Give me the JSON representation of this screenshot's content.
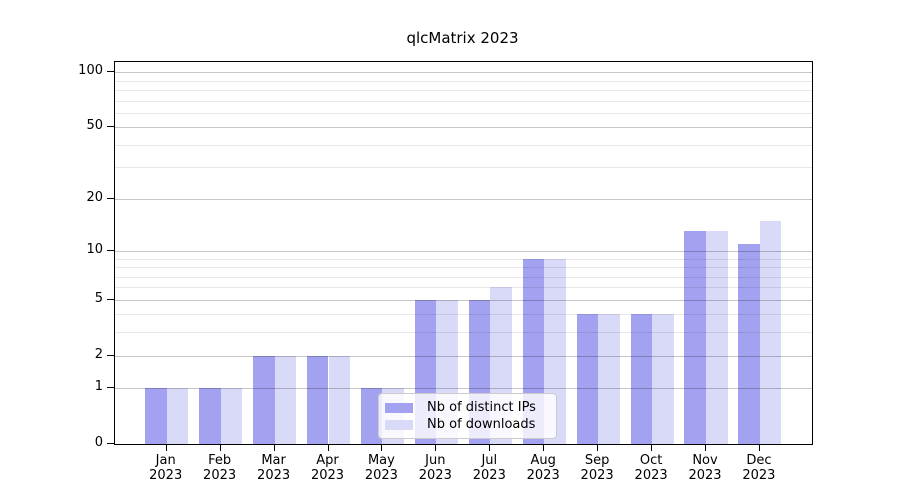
{
  "title": "qlcMatrix 2023",
  "legend": {
    "items": [
      {
        "label": "Nb of distinct IPs",
        "color": "#a2a2f0"
      },
      {
        "label": "Nb of downloads",
        "color": "#d9d9f8"
      }
    ]
  },
  "chart_data": {
    "type": "bar",
    "title": "qlcMatrix 2023",
    "categories": [
      "Jan 2023",
      "Feb 2023",
      "Mar 2023",
      "Apr 2023",
      "May 2023",
      "Jun 2023",
      "Jul 2023",
      "Aug 2023",
      "Sep 2023",
      "Oct 2023",
      "Nov 2023",
      "Dec 2023"
    ],
    "series": [
      {
        "name": "Nb of distinct IPs",
        "color": "#a2a2f0",
        "values": [
          1,
          1,
          2,
          2,
          1,
          5,
          5,
          9,
          4,
          4,
          13,
          11
        ]
      },
      {
        "name": "Nb of downloads",
        "color": "#d9d9f8",
        "values": [
          1,
          1,
          2,
          2,
          1,
          5,
          6,
          9,
          4,
          4,
          13,
          15
        ]
      }
    ],
    "xlabel": "",
    "ylabel": "",
    "y_scale": "log1p",
    "ylim": [
      0,
      115
    ],
    "y_major_ticks": [
      0,
      1,
      2,
      5,
      10,
      20,
      50,
      100
    ],
    "y_minor_gridlines": [
      3,
      4,
      6,
      7,
      8,
      9,
      30,
      40,
      60,
      70,
      80,
      90
    ],
    "grid": true,
    "grid_above_bars": true,
    "legend_position": "lower center"
  },
  "colors": {
    "background": "#ffffff",
    "axis": "#000000",
    "major_grid": "#c7c7c7",
    "minor_grid": "#e8e8e8"
  }
}
